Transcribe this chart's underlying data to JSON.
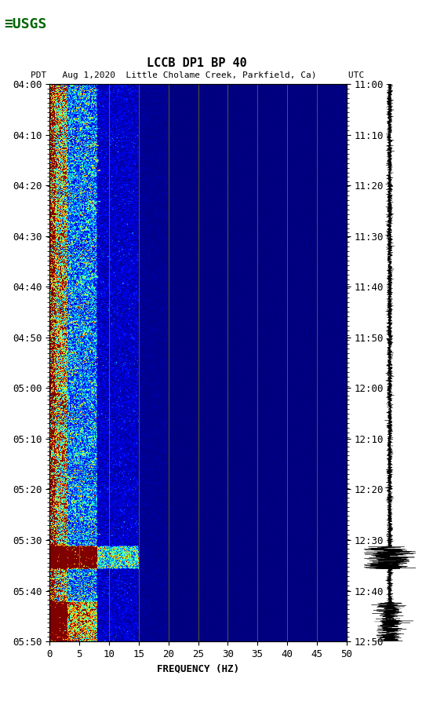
{
  "title_line1": "LCCB DP1 BP 40",
  "title_line2": "PDT   Aug 1,2020  Little Cholame Creek, Parkfield, Ca)      UTC",
  "left_times": [
    "04:00",
    "04:10",
    "04:20",
    "04:30",
    "04:40",
    "04:50",
    "05:00",
    "05:10",
    "05:20",
    "05:30",
    "05:40",
    "05:50"
  ],
  "right_times": [
    "11:00",
    "11:10",
    "11:20",
    "11:30",
    "11:40",
    "11:50",
    "12:00",
    "12:10",
    "12:20",
    "12:30",
    "12:40",
    "12:50"
  ],
  "freq_min": 0,
  "freq_max": 50,
  "freq_ticks": [
    0,
    5,
    10,
    15,
    20,
    25,
    30,
    35,
    40,
    45,
    50
  ],
  "freq_label": "FREQUENCY (HZ)",
  "vertical_lines": [
    5,
    10,
    15,
    20,
    25,
    30,
    35,
    40,
    45
  ],
  "n_time_steps": 720,
  "n_freq_bins": 500,
  "background_color": "#ffffff",
  "usgs_green": "#006400",
  "title_color": "#000000",
  "colormap": "jet",
  "vline_color": "#8B8000",
  "vline_lw": 0.6
}
